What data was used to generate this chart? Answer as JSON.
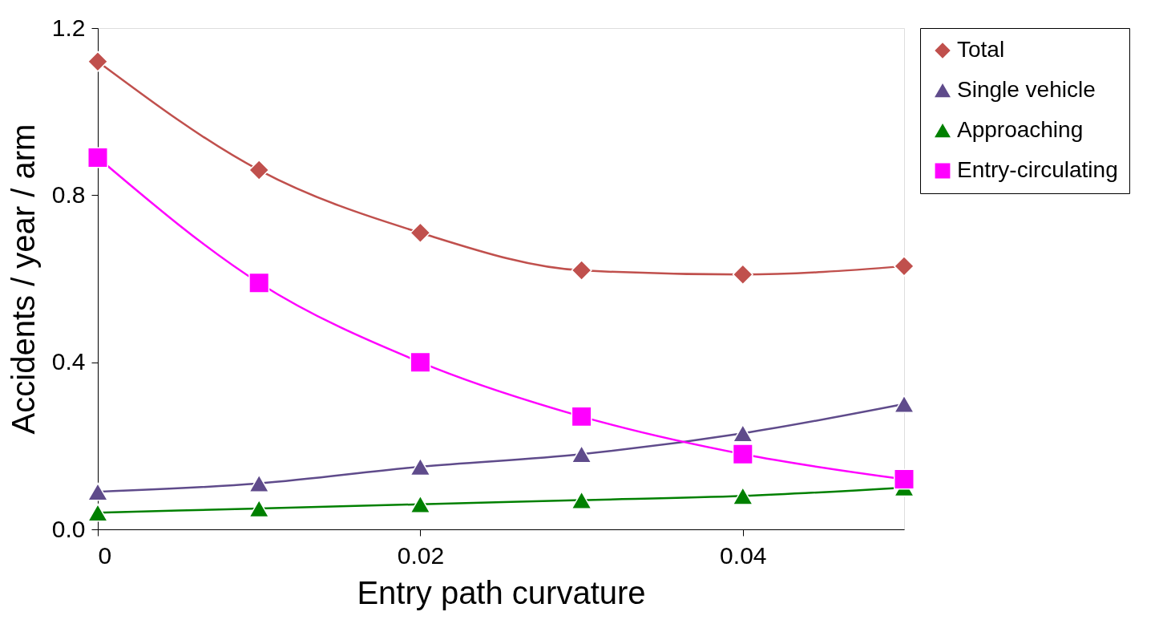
{
  "chart_data": {
    "type": "line",
    "xlabel": "Entry path curvature",
    "ylabel": "Accidents / year / arm",
    "x": [
      0,
      0.01,
      0.02,
      0.03,
      0.04,
      0.05
    ],
    "series": [
      {
        "name": "Total",
        "color": "#c0504d",
        "marker": "diamond",
        "values": [
          1.12,
          0.86,
          0.71,
          0.62,
          0.61,
          0.63
        ]
      },
      {
        "name": "Single vehicle",
        "color": "#5f4b8b",
        "marker": "triangle",
        "values": [
          0.09,
          0.11,
          0.15,
          0.18,
          0.23,
          0.3
        ]
      },
      {
        "name": "Approaching",
        "color": "#008000",
        "marker": "triangle",
        "values": [
          0.04,
          0.05,
          0.06,
          0.07,
          0.08,
          0.1
        ]
      },
      {
        "name": "Entry-circulating",
        "color": "#ff00ff",
        "marker": "square",
        "values": [
          0.89,
          0.59,
          0.4,
          0.27,
          0.18,
          0.12
        ]
      }
    ],
    "xlim": [
      0,
      0.05
    ],
    "xticks": [
      0,
      0.02,
      0.04
    ],
    "ylim": [
      0,
      1.2
    ],
    "yticks": [
      {
        "value": 0,
        "label": "0.0"
      },
      {
        "value": 0.4,
        "label": "0.4"
      },
      {
        "value": 0.8,
        "label": "0.8"
      },
      {
        "value": 1.2,
        "label": "1.2"
      }
    ],
    "grid": false,
    "legend": "right",
    "line_style": "solid"
  }
}
